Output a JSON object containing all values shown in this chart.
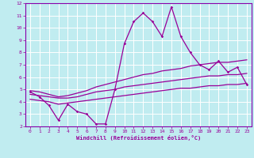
{
  "xlabel": "Windchill (Refroidissement éolien,°C)",
  "bg_color": "#c0ecf0",
  "line_color": "#990099",
  "grid_color": "#ffffff",
  "border_color": "#8800aa",
  "xlim": [
    -0.5,
    23.5
  ],
  "ylim": [
    2,
    12
  ],
  "xticks": [
    0,
    1,
    2,
    3,
    4,
    5,
    6,
    7,
    8,
    9,
    10,
    11,
    12,
    13,
    14,
    15,
    16,
    17,
    18,
    19,
    20,
    21,
    22,
    23
  ],
  "yticks": [
    2,
    3,
    4,
    5,
    6,
    7,
    8,
    9,
    10,
    11,
    12
  ],
  "hours": [
    0,
    1,
    2,
    3,
    4,
    5,
    6,
    7,
    8,
    9,
    10,
    11,
    12,
    13,
    14,
    15,
    16,
    17,
    18,
    19,
    20,
    21,
    22,
    23
  ],
  "line_main": [
    4.8,
    4.4,
    3.7,
    2.5,
    3.8,
    3.2,
    3.0,
    2.2,
    2.2,
    5.0,
    8.7,
    10.5,
    11.2,
    10.5,
    9.3,
    11.7,
    9.3,
    8.0,
    7.0,
    6.6,
    7.3,
    6.4,
    6.8,
    5.4
  ],
  "line_upper": [
    4.9,
    4.8,
    4.6,
    4.4,
    4.5,
    4.7,
    4.9,
    5.2,
    5.4,
    5.6,
    5.8,
    6.0,
    6.2,
    6.3,
    6.5,
    6.6,
    6.7,
    6.9,
    7.0,
    7.1,
    7.2,
    7.2,
    7.3,
    7.4
  ],
  "line_mid": [
    4.6,
    4.5,
    4.4,
    4.3,
    4.3,
    4.4,
    4.6,
    4.8,
    4.9,
    5.0,
    5.2,
    5.3,
    5.4,
    5.5,
    5.6,
    5.7,
    5.8,
    5.9,
    6.0,
    6.1,
    6.1,
    6.2,
    6.2,
    6.3
  ],
  "line_lower": [
    4.2,
    4.1,
    4.0,
    3.8,
    3.9,
    4.0,
    4.1,
    4.2,
    4.3,
    4.4,
    4.5,
    4.6,
    4.7,
    4.8,
    4.9,
    5.0,
    5.1,
    5.1,
    5.2,
    5.3,
    5.3,
    5.4,
    5.4,
    5.5
  ]
}
